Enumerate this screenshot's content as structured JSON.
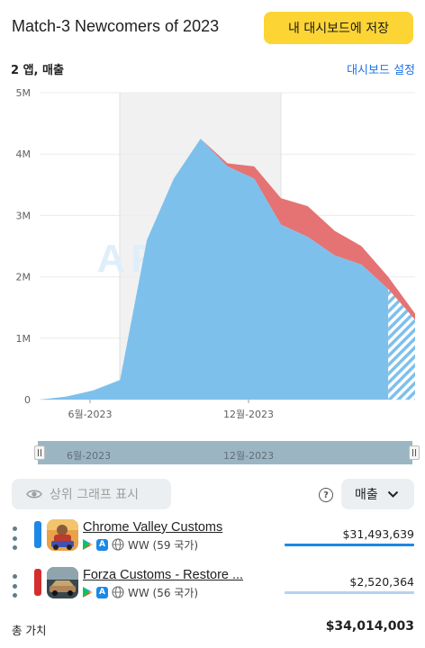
{
  "header": {
    "title": "Match-3 Newcomers of 2023",
    "save_button": "내 대시보드에 저장"
  },
  "subbar": {
    "apps_metric": "2 앱, 매출",
    "dashboard_settings": "대시보드 설정"
  },
  "chart_data": {
    "type": "area",
    "watermark": "APPMAGIC",
    "y_ticks": [
      "5M",
      "4M",
      "3M",
      "2M",
      "1M",
      "0"
    ],
    "x_ticks": [
      "6월-2023",
      "12월-2023"
    ],
    "ylim": [
      0,
      5000000
    ],
    "series": [
      {
        "name": "Chrome Valley Customs",
        "color": "#7ec0ec",
        "values": [
          0,
          50000,
          150000,
          320000,
          2600000,
          3600000,
          4250000,
          3800000,
          3600000,
          2850000,
          2650000,
          2350000,
          2200000,
          1800000,
          1300000
        ]
      },
      {
        "name": "Forza Customs - Restore Cars",
        "color": "#e57373",
        "values": [
          0,
          0,
          0,
          0,
          0,
          0,
          0,
          50000,
          200000,
          430000,
          500000,
          400000,
          300000,
          200000,
          100000
        ]
      }
    ],
    "highlight": "6월-2023 – 12월-2023",
    "forecast_from_index": 13
  },
  "range_slider": {
    "left_label": "6월-2023",
    "right_label": "12월-2023"
  },
  "controls": {
    "show_top_graph": "상위 그래프 표시",
    "metric_select": "매출"
  },
  "apps": [
    {
      "name": "Chrome Valley Customs",
      "region": "WW (59 국가)",
      "value": "$31,493,639",
      "color": "#1e88e5"
    },
    {
      "name": "Forza Customs - Restore ...",
      "region": "WW (56 국가)",
      "value": "$2,520,364",
      "color": "#d32f2f"
    }
  ],
  "total": {
    "label": "총 가치",
    "value": "$34,014,003"
  }
}
